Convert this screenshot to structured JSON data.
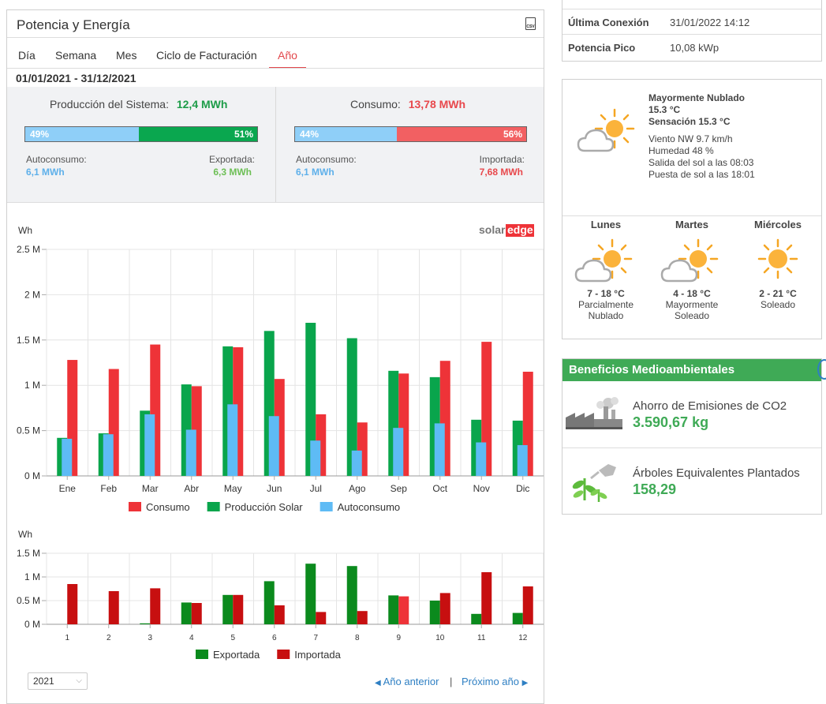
{
  "energy": {
    "title": "Potencia y Energía",
    "csv_icon": "csv-file-icon",
    "tabs": [
      {
        "label": "Día"
      },
      {
        "label": "Semana"
      },
      {
        "label": "Mes"
      },
      {
        "label": "Ciclo de Facturación"
      },
      {
        "label": "Año",
        "active": true
      }
    ],
    "date_range": "01/01/2021 - 31/12/2021",
    "production": {
      "label": "Producción del Sistema:",
      "value": "12,4 MWh",
      "self_pct": "49%",
      "export_pct": "51%",
      "self_fraction": 0.49,
      "self_label": "Autoconsumo:",
      "self_value": "6,1 MWh",
      "export_label": "Exportada:",
      "export_value": "6,3 MWh"
    },
    "consumption": {
      "label": "Consumo:",
      "value": "13,78 MWh",
      "self_pct": "44%",
      "import_pct": "56%",
      "self_fraction": 0.44,
      "self_label": "Autoconsumo:",
      "self_value": "6,1 MWh",
      "import_label": "Importada:",
      "import_value": "7,68 MWh"
    },
    "brand_solar": "solar",
    "brand_edge": "edge",
    "colors": {
      "consumo": "#ee3338",
      "produccion": "#09a54c",
      "autoconsumo": "#5ebbf5",
      "exportada": "#0b8a1d",
      "importada": "#c70f10",
      "accent": "#e2474b",
      "green_text": "#1d9c48",
      "red_text": "#e8484c",
      "blue_text": "#5eb0ea"
    },
    "footer": {
      "year_select": "2021",
      "prev_label": "Año anterior",
      "separator": "|",
      "next_label": "Próximo año"
    }
  },
  "chart_data": [
    {
      "type": "bar",
      "ylabel": "Wh",
      "ylim": [
        0,
        2500000
      ],
      "ytick_values": [
        0,
        500000,
        1000000,
        1500000,
        2000000,
        2500000
      ],
      "ytick_labels": [
        "0 M",
        "0.5 M",
        "1 M",
        "1.5 M",
        "2 M",
        "2.5 M"
      ],
      "categories": [
        "Ene",
        "Feb",
        "Mar",
        "Abr",
        "May",
        "Jun",
        "Jul",
        "Ago",
        "Sep",
        "Oct",
        "Nov",
        "Dic"
      ],
      "series": [
        {
          "name": "Consumo",
          "color": "#ee3338",
          "values": [
            1280000,
            1180000,
            1450000,
            990000,
            1420000,
            1070000,
            680000,
            590000,
            1130000,
            1270000,
            1480000,
            1150000
          ]
        },
        {
          "name": "Producción Solar",
          "color": "#09a54c",
          "values": [
            420000,
            470000,
            720000,
            1010000,
            1430000,
            1600000,
            1690000,
            1520000,
            1160000,
            1090000,
            620000,
            610000
          ]
        },
        {
          "name": "Autoconsumo",
          "color": "#5ebbf5",
          "values": [
            410000,
            460000,
            680000,
            510000,
            790000,
            660000,
            390000,
            280000,
            530000,
            580000,
            370000,
            340000
          ]
        }
      ],
      "grid": true,
      "legend": "bottom"
    },
    {
      "type": "bar",
      "ylabel": "Wh",
      "ylim": [
        0,
        1500000
      ],
      "ytick_values": [
        0,
        500000,
        1000000,
        1500000
      ],
      "ytick_labels": [
        "0 M",
        "0.5 M",
        "1 M",
        "1.5 M"
      ],
      "categories": [
        "1",
        "2",
        "3",
        "4",
        "5",
        "6",
        "7",
        "8",
        "9",
        "10",
        "11",
        "12"
      ],
      "series": [
        {
          "name": "Exportada",
          "color": "#0b8a1d",
          "values": [
            0,
            0,
            20000,
            460000,
            620000,
            910000,
            1280000,
            1230000,
            610000,
            500000,
            220000,
            240000
          ]
        },
        {
          "name": "Importada",
          "color": "#c70f10",
          "values": [
            850000,
            700000,
            760000,
            450000,
            620000,
            400000,
            260000,
            280000,
            590000,
            660000,
            1100000,
            800000
          ]
        }
      ],
      "highlight_import_index": 8,
      "highlight_color": "#ee3338",
      "grid": true,
      "legend": "bottom"
    }
  ],
  "info": {
    "rows": [
      {
        "label": "Última Conexión",
        "value": "31/01/2022 14:12"
      },
      {
        "label": "Potencia Pico",
        "value": "10,08 kWp"
      }
    ]
  },
  "weather": {
    "current": {
      "icon": "partly-cloudy-icon",
      "condition": "Mayormente Nublado",
      "temp": "15.3 °C",
      "feels": "Sensación 15.3 °C",
      "wind": "Viento NW 9.7 km/h",
      "humidity": "Humedad 48 %",
      "sunrise": "Salida del sol a las 08:03",
      "sunset": "Puesta de sol a las 18:01"
    },
    "forecast": [
      {
        "day": "Lunes",
        "icon": "partly-cloudy-icon",
        "range": "7 - 18 °C",
        "desc1": "Parcialmente",
        "desc2": "Nublado"
      },
      {
        "day": "Martes",
        "icon": "partly-cloudy-icon",
        "range": "4 - 18 °C",
        "desc1": "Mayormente",
        "desc2": "Soleado"
      },
      {
        "day": "Miércoles",
        "icon": "sun-icon",
        "range": "2 - 21 °C",
        "desc1": "Soleado",
        "desc2": ""
      }
    ]
  },
  "benefits": {
    "header": "Beneficios Medioambientales",
    "co2_label": "Ahorro de Emisiones de CO2",
    "co2_value": "3.590,67 kg",
    "co2_icon": "factory-icon",
    "trees_label": "Árboles Equivalentes Plantados",
    "trees_value": "158,29",
    "trees_icon": "plant-watering-icon"
  }
}
